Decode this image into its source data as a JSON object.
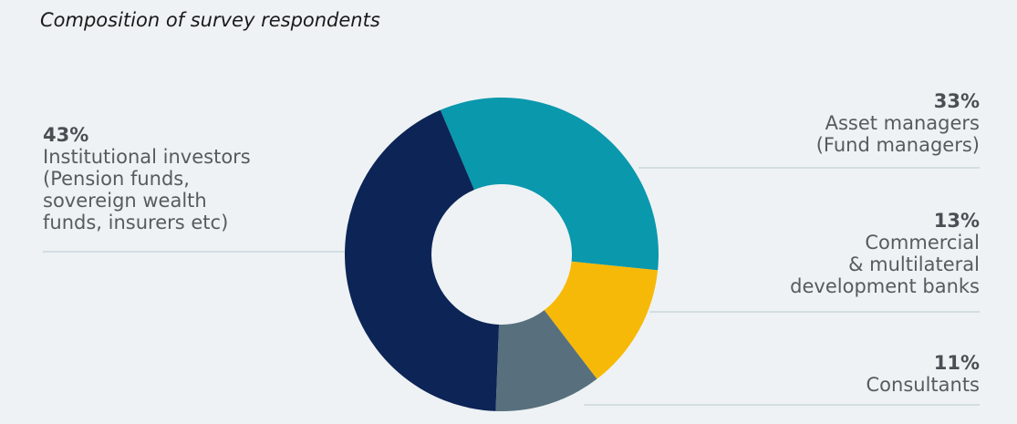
{
  "chart_data": {
    "type": "pie",
    "title": "Composition of survey respondents",
    "slices": [
      {
        "label": "Asset managers\n(Fund managers)",
        "value": 33,
        "value_label": "33%",
        "color": "#0a98ad"
      },
      {
        "label": "Commercial\n& multilateral\ndevelopment banks",
        "value": 13,
        "value_label": "13%",
        "color": "#f7b907"
      },
      {
        "label": "Consultants",
        "value": 11,
        "value_label": "11%",
        "color": "#58707d"
      },
      {
        "label": "Institutional investors\n(Pension funds,\nsovereign wealth\nfunds, insurers etc)",
        "value": 43,
        "value_label": "43%",
        "color": "#0c2456"
      }
    ]
  }
}
